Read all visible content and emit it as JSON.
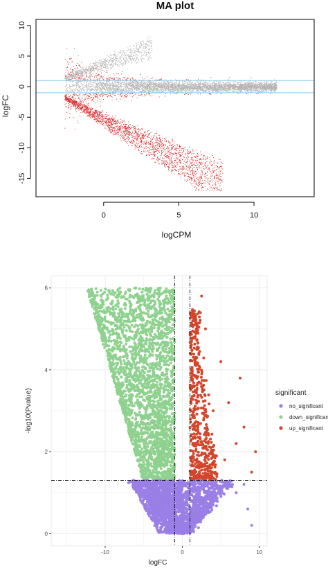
{
  "chart_data": [
    {
      "type": "scatter",
      "title": "MA plot",
      "xlabel": "logCPM",
      "ylabel": "logFC",
      "xlim": [
        -4.5,
        14
      ],
      "ylim": [
        -18,
        11
      ],
      "xticks": [
        0,
        5,
        10
      ],
      "yticks": [
        -15,
        -10,
        -5,
        0,
        5,
        10
      ],
      "threshold_lines": [
        1,
        -1
      ],
      "threshold_color": "#87cefa",
      "grid": false,
      "series": [
        {
          "color": "#b3b3b3",
          "description_points": "non-differential genes"
        },
        {
          "color": "#d62728",
          "description_points": "differential genes"
        }
      ]
    },
    {
      "type": "scatter",
      "xlabel": "logFC",
      "ylabel": "-log10(Pvalue)",
      "xlim": [
        -17,
        11
      ],
      "ylim": [
        -0.3,
        6.3
      ],
      "xticks": [
        -10,
        0,
        10
      ],
      "yticks": [
        0,
        2,
        4,
        6
      ],
      "threshold_x": [
        -1,
        1
      ],
      "threshold_y": 1.3,
      "grid": true,
      "legend": {
        "title": "significant",
        "position": "right",
        "items": [
          {
            "label": "no_significant",
            "color": "#9a7fe6"
          },
          {
            "label": "down_significant",
            "color": "#8fd18f"
          },
          {
            "label": "up_significant",
            "color": "#d3462b"
          }
        ]
      },
      "series": [
        {
          "name": "no_significant",
          "color": "#9a7fe6"
        },
        {
          "name": "down_significant",
          "color": "#8fd18f"
        },
        {
          "name": "up_significant",
          "color": "#d3462b"
        }
      ]
    }
  ]
}
